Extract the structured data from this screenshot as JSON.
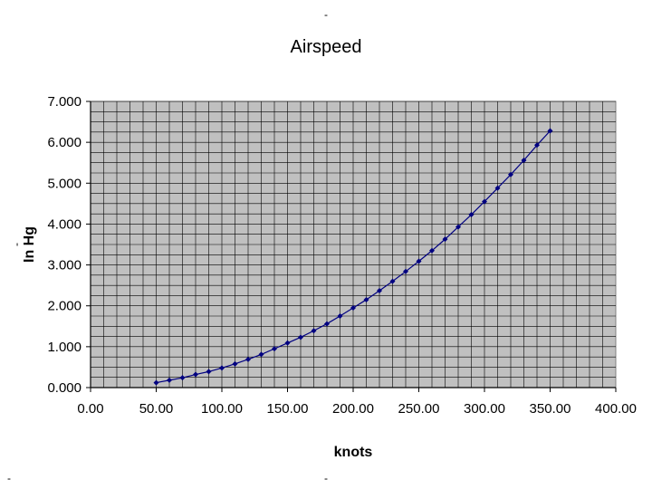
{
  "chart_data": {
    "type": "line",
    "title": "Airspeed",
    "xlabel": "knots",
    "ylabel": "In Hg",
    "xlim": [
      0,
      400
    ],
    "ylim": [
      0,
      7
    ],
    "x_ticks": [
      "0.00",
      "50.00",
      "100.00",
      "150.00",
      "200.00",
      "250.00",
      "300.00",
      "350.00",
      "400.00"
    ],
    "y_ticks": [
      "0.000",
      "1.000",
      "2.000",
      "3.000",
      "4.000",
      "5.000",
      "6.000",
      "7.000"
    ],
    "grid": true,
    "legend": "none",
    "colors": {
      "plot_background": "#c0c0c0",
      "gridline": "#000000",
      "series": "#000080"
    },
    "series": [
      {
        "x": [
          50,
          60,
          70,
          80,
          90,
          100,
          110,
          120,
          130,
          140,
          150,
          160,
          170,
          180,
          190,
          200,
          210,
          220,
          230,
          240,
          250,
          260,
          270,
          280,
          290,
          300,
          310,
          320,
          330,
          340,
          350
        ],
        "values": [
          0.12,
          0.18,
          0.24,
          0.32,
          0.39,
          0.48,
          0.58,
          0.69,
          0.81,
          0.95,
          1.09,
          1.23,
          1.39,
          1.56,
          1.75,
          1.95,
          2.15,
          2.37,
          2.6,
          2.84,
          3.09,
          3.35,
          3.63,
          3.93,
          4.23,
          4.55,
          4.88,
          5.21,
          5.56,
          5.93,
          6.28
        ]
      }
    ]
  },
  "marks": {
    "top_left": "-",
    "ylabel_prefix": "-",
    "bottom_left": "-",
    "bottom_mid": "-"
  }
}
